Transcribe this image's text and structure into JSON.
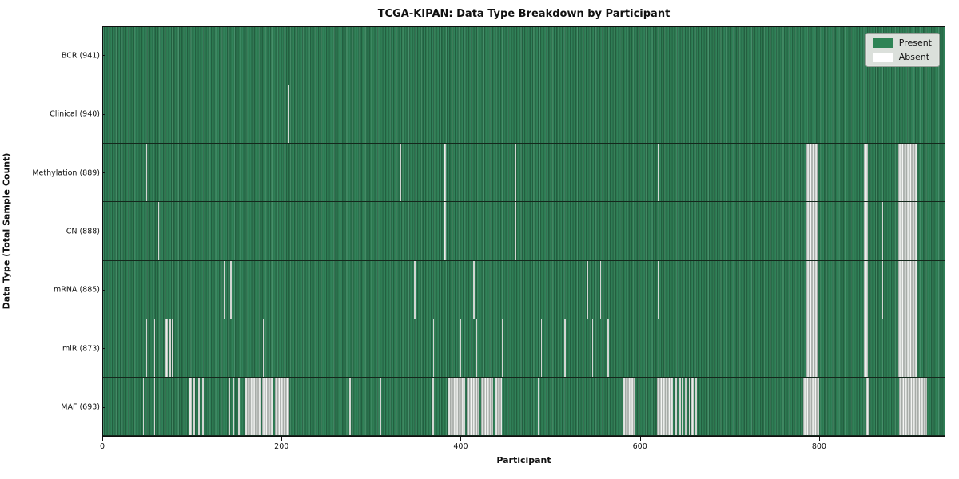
{
  "chart_data": {
    "type": "heatmap",
    "title": "TCGA-KIPAN: Data Type Breakdown by Participant",
    "xlabel": "Participant",
    "ylabel": "Data Type (Total Sample Count)",
    "x_max": 941,
    "x_ticks": [
      0,
      200,
      400,
      600,
      800
    ],
    "grid": "off",
    "legend_position": "upper right",
    "colors": {
      "present": "#2e8455",
      "present_dark_edge": "#235f40",
      "absent": "#ffffff",
      "absent_stripe": "#c9cec9",
      "legend_bg": "#dbe0db",
      "figure_bg": "#ffffff"
    },
    "legend": [
      {
        "label": "Present",
        "color": "#2e8455"
      },
      {
        "label": "Absent",
        "color": "#ffffff"
      }
    ],
    "rows": [
      {
        "name": "bcr",
        "label": "BCR (941)",
        "data_type": "BCR",
        "total_sample_count": 941,
        "absent_ranges": []
      },
      {
        "name": "clinical",
        "label": "Clinical (940)",
        "data_type": "Clinical",
        "total_sample_count": 940,
        "absent_ranges": [
          [
            207,
            1
          ]
        ]
      },
      {
        "name": "methylation",
        "label": "Methylation (889)",
        "data_type": "Methylation",
        "total_sample_count": 889,
        "absent_ranges": [
          [
            48,
            1
          ],
          [
            332,
            1
          ],
          [
            381,
            2
          ],
          [
            460,
            2
          ],
          [
            620,
            1
          ],
          [
            786,
            13
          ],
          [
            851,
            4
          ],
          [
            889,
            22
          ]
        ]
      },
      {
        "name": "cn",
        "label": "CN (888)",
        "data_type": "CN",
        "total_sample_count": 888,
        "absent_ranges": [
          [
            62,
            1
          ],
          [
            381,
            2
          ],
          [
            460,
            2
          ],
          [
            786,
            13
          ],
          [
            851,
            4
          ],
          [
            871,
            1
          ],
          [
            889,
            22
          ]
        ]
      },
      {
        "name": "mrna",
        "label": "mRNA (885)",
        "data_type": "mRNA",
        "total_sample_count": 885,
        "absent_ranges": [
          [
            64,
            1
          ],
          [
            135,
            1.5
          ],
          [
            142,
            1.5
          ],
          [
            348,
            1
          ],
          [
            414,
            1.5
          ],
          [
            541,
            1.5
          ],
          [
            556,
            1
          ],
          [
            620,
            1
          ],
          [
            786,
            13
          ],
          [
            851,
            4
          ],
          [
            871,
            1
          ],
          [
            889,
            22
          ]
        ]
      },
      {
        "name": "mir",
        "label": "miR (873)",
        "data_type": "miR",
        "total_sample_count": 873,
        "absent_ranges": [
          [
            48,
            1
          ],
          [
            57,
            1
          ],
          [
            70,
            2
          ],
          [
            74,
            2
          ],
          [
            77,
            1
          ],
          [
            179,
            1
          ],
          [
            369,
            1
          ],
          [
            399,
            1.5
          ],
          [
            417,
            1.5
          ],
          [
            442,
            1.5
          ],
          [
            446,
            1
          ],
          [
            490,
            1
          ],
          [
            516,
            1
          ],
          [
            547,
            1
          ],
          [
            564,
            1.5
          ],
          [
            786,
            13
          ],
          [
            851,
            4
          ],
          [
            889,
            22
          ]
        ]
      },
      {
        "name": "maf",
        "label": "MAF (693)",
        "data_type": "MAF",
        "total_sample_count": 693,
        "absent_ranges": [
          [
            45,
            1
          ],
          [
            57,
            1.5
          ],
          [
            82,
            1
          ],
          [
            96,
            3
          ],
          [
            101,
            2
          ],
          [
            106,
            2
          ],
          [
            111,
            2
          ],
          [
            140,
            2
          ],
          [
            145,
            2
          ],
          [
            151,
            2
          ],
          [
            158,
            18
          ],
          [
            178,
            12
          ],
          [
            192,
            16
          ],
          [
            275,
            2
          ],
          [
            310,
            1
          ],
          [
            368,
            2
          ],
          [
            385,
            20
          ],
          [
            407,
            14
          ],
          [
            423,
            13
          ],
          [
            438,
            8
          ],
          [
            460,
            1.5
          ],
          [
            486,
            1
          ],
          [
            581,
            14
          ],
          [
            619,
            18
          ],
          [
            640,
            2
          ],
          [
            644,
            2
          ],
          [
            648,
            1
          ],
          [
            651,
            2
          ],
          [
            655,
            1
          ],
          [
            658,
            2
          ],
          [
            662,
            2
          ],
          [
            783,
            18
          ],
          [
            853,
            3
          ],
          [
            890,
            31
          ]
        ]
      }
    ]
  }
}
